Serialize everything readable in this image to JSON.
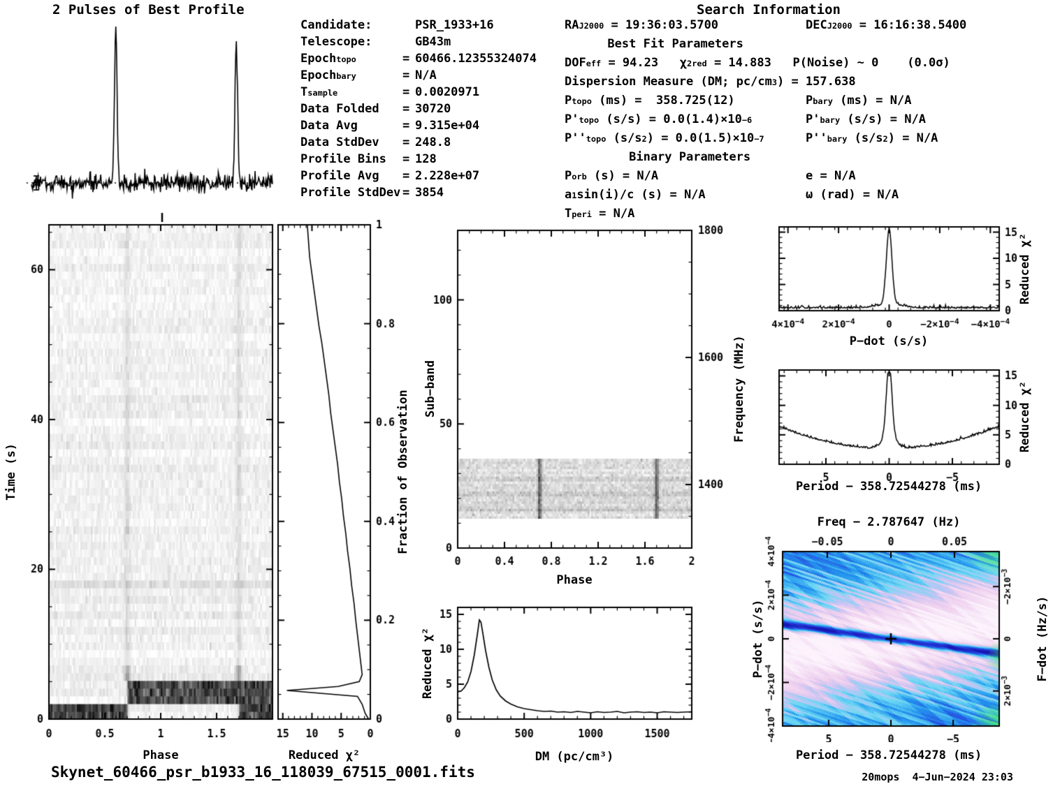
{
  "colors": {
    "background": "#ffffff",
    "ink": "#000000",
    "map_deep_blue": "#1816b4",
    "map_blue": "#2846e1",
    "map_cyan": "#2396ee",
    "map_light_cyan": "#6edaf4",
    "map_lavender": "#c4c4f4",
    "map_pink": "#eecee e",
    "map_white": "#fcf3fc",
    "map_green": "#46e878"
  },
  "header": {
    "profile_title": "2 Pulses of Best Profile",
    "search_title": "Search Information"
  },
  "candidate_info": {
    "rows": [
      {
        "lab": [
          {
            "t": "Candidate:"
          }
        ],
        "eq": "",
        "val": "PSR_1933+16"
      },
      {
        "lab": [
          {
            "t": "Telescope:"
          }
        ],
        "eq": "",
        "val": "GB43m"
      },
      {
        "lab": [
          {
            "t": "Epoch"
          },
          {
            "t": "topo",
            "s": "sub"
          }
        ],
        "eq": "=",
        "val": "60466.12355324074"
      },
      {
        "lab": [
          {
            "t": "Epoch"
          },
          {
            "t": "bary",
            "s": "sub"
          }
        ],
        "eq": "=",
        "val": "N/A"
      },
      {
        "lab": [
          {
            "t": "T"
          },
          {
            "t": "sample",
            "s": "sub"
          }
        ],
        "eq": "=",
        "val": "0.0020971"
      },
      {
        "lab": [
          {
            "t": "Data Folded"
          }
        ],
        "eq": "=",
        "val": "30720"
      },
      {
        "lab": [
          {
            "t": "Data Avg"
          }
        ],
        "eq": "=",
        "val": "9.315e+04"
      },
      {
        "lab": [
          {
            "t": "Data StdDev"
          }
        ],
        "eq": "=",
        "val": "248.8"
      },
      {
        "lab": [
          {
            "t": "Profile Bins"
          }
        ],
        "eq": "=",
        "val": "128"
      },
      {
        "lab": [
          {
            "t": "Profile Avg"
          }
        ],
        "eq": "=",
        "val": "2.228e+07"
      },
      {
        "lab": [
          {
            "t": "Profile StdDev"
          }
        ],
        "eq": "=",
        "val": "3854"
      }
    ]
  },
  "search_info": {
    "rows": [
      {
        "l": [
          {
            "t": "RA"
          },
          {
            "t": "J2000",
            "s": "sub"
          },
          {
            "t": " = 19:36:03.5700"
          }
        ],
        "r": [
          {
            "t": "DEC"
          },
          {
            "t": "J2000",
            "s": "sub"
          },
          {
            "t": " = 16:16:38.5400"
          }
        ]
      },
      {
        "l": [
          {
            "t": "      Best Fit Parameters"
          }
        ]
      },
      {
        "l": [
          {
            "t": "DOF"
          },
          {
            "t": "eff",
            "s": "sub"
          },
          {
            "t": " = 94.23   "
          },
          {
            "t": "χ"
          },
          {
            "t": "2",
            "s": "sup"
          },
          {
            "t": "red",
            "s": "sub"
          },
          {
            "t": " = 14.883   P(Noise) ~ 0    (0.0σ)"
          }
        ]
      },
      {
        "l": [
          {
            "t": "Dispersion Measure (DM; pc/cm"
          },
          {
            "t": "3",
            "s": "sup"
          },
          {
            "t": ") = 157.638"
          }
        ]
      },
      {
        "l": [
          {
            "t": "P"
          },
          {
            "t": "topo",
            "s": "sub"
          },
          {
            "t": " (ms) =  358.725(12)"
          }
        ],
        "r": [
          {
            "t": "P"
          },
          {
            "t": "bary",
            "s": "sub"
          },
          {
            "t": " (ms) = N/A"
          }
        ]
      },
      {
        "l": [
          {
            "t": "P'"
          },
          {
            "t": "topo",
            "s": "sub"
          },
          {
            "t": " (s/s) = 0.0(1.4)×10"
          },
          {
            "t": "−6",
            "s": "sup"
          }
        ],
        "r": [
          {
            "t": "P'"
          },
          {
            "t": "bary",
            "s": "sub"
          },
          {
            "t": " (s/s) = N/A"
          }
        ]
      },
      {
        "l": [
          {
            "t": "P''"
          },
          {
            "t": "topo",
            "s": "sub"
          },
          {
            "t": " (s/s"
          },
          {
            "t": "2",
            "s": "sup"
          },
          {
            "t": ") = 0.0(1.5)×10"
          },
          {
            "t": "−7",
            "s": "sup"
          }
        ],
        "r": [
          {
            "t": "P''"
          },
          {
            "t": "bary",
            "s": "sub"
          },
          {
            "t": " (s/s"
          },
          {
            "t": "2",
            "s": "sup"
          },
          {
            "t": ") = N/A"
          }
        ]
      },
      {
        "l": [
          {
            "t": "         Binary Parameters"
          }
        ]
      },
      {
        "l": [
          {
            "t": "P"
          },
          {
            "t": "orb",
            "s": "sub"
          },
          {
            "t": " (s) = N/A"
          }
        ],
        "r": [
          {
            "t": "e = N/A"
          }
        ]
      },
      {
        "l": [
          {
            "t": "a"
          },
          {
            "t": "1",
            "s": "sub"
          },
          {
            "t": "sin(i)/c (s) = N/A"
          }
        ],
        "r": [
          {
            "t": "ω (rad) = N/A"
          }
        ]
      },
      {
        "l": [
          {
            "t": "T"
          },
          {
            "t": "peri",
            "s": "sub"
          },
          {
            "t": " = N/A"
          }
        ]
      }
    ]
  },
  "axis_labels": {
    "time": "Time (s)",
    "phase": "Phase",
    "reduced_chisq": "Reduced χ²",
    "fraction": "Fraction of Observation",
    "subband": "Sub−band",
    "frequency": "Frequency (MHz)",
    "dm": "DM (pc/cm³)",
    "pdot": "P−dot (s/s)",
    "period": "Period − 358.72544278 (ms)",
    "freq_top": "Freq − 2.787647 (Hz)",
    "fdot": "F−dot (Hz/s)"
  },
  "footer": {
    "filename": "Skynet_60466_psr_b1933_16_118039_67515_0001.fits",
    "credit": "20mops  4−Jun−2024 23:03"
  },
  "chart_data": [
    {
      "id": "profile",
      "type": "line",
      "title": "2 Pulses of Best Profile",
      "x_range": [
        0,
        2
      ],
      "n_bins": 400,
      "noise_sigma": 1,
      "peaks": [
        {
          "center": 0.7,
          "sigma": 0.011,
          "height": 35
        },
        {
          "center": 1.7,
          "sigma": 0.011,
          "height": 33
        }
      ],
      "mean_line": true,
      "profile_avg": "2.228e+07",
      "profile_stddev": "3854"
    },
    {
      "id": "time_phase",
      "type": "heatmap",
      "xlabel": "Phase",
      "ylabel": "Time (s)",
      "x_range": [
        0,
        2
      ],
      "x_ticks": [
        0,
        0.5,
        1,
        1.5
      ],
      "y_range": [
        0,
        66
      ],
      "y_ticks": [
        0,
        20,
        40,
        60
      ],
      "rows": 64,
      "cols": 128,
      "pulse_phases": [
        0.7,
        1.7
      ],
      "bright_interval_s": [
        0,
        5
      ]
    },
    {
      "id": "chisq_fraction",
      "type": "line",
      "xlabel": "Reduced χ²",
      "x_range": [
        15.8,
        0
      ],
      "x_ticks": [
        15,
        10,
        5,
        0
      ],
      "ylabel_right": "Fraction of Observation",
      "y_range": [
        0,
        1
      ],
      "y_ticks": [
        0,
        0.2,
        0.4,
        0.6,
        0.8,
        1
      ],
      "points": [
        [
          0.3,
          0
        ],
        [
          0.9,
          0.012
        ],
        [
          1.4,
          0.03
        ],
        [
          2.2,
          0.046
        ],
        [
          14.3,
          0.058
        ],
        [
          5.5,
          0.066
        ],
        [
          1.9,
          0.076
        ],
        [
          1.4,
          0.09
        ],
        [
          1.6,
          0.11
        ],
        [
          1.9,
          0.14
        ],
        [
          2.2,
          0.17
        ],
        [
          2.5,
          0.2
        ],
        [
          2.8,
          0.235
        ],
        [
          3.2,
          0.27
        ],
        [
          3.5,
          0.305
        ],
        [
          3.9,
          0.34
        ],
        [
          4.2,
          0.375
        ],
        [
          4.6,
          0.41
        ],
        [
          4.9,
          0.445
        ],
        [
          5.3,
          0.48
        ],
        [
          5.6,
          0.515
        ],
        [
          6.0,
          0.55
        ],
        [
          6.4,
          0.585
        ],
        [
          6.8,
          0.62
        ],
        [
          7.1,
          0.655
        ],
        [
          7.5,
          0.69
        ],
        [
          7.9,
          0.725
        ],
        [
          8.3,
          0.76
        ],
        [
          8.8,
          0.795
        ],
        [
          9.2,
          0.83
        ],
        [
          9.6,
          0.865
        ],
        [
          10.0,
          0.9
        ],
        [
          10.4,
          0.935
        ],
        [
          10.6,
          0.968
        ],
        [
          10.8,
          1.0
        ]
      ]
    },
    {
      "id": "subband_phase",
      "type": "heatmap",
      "xlabel": "Phase",
      "ylabel": "Sub−band",
      "ylabel_right": "Frequency (MHz)",
      "x_range": [
        0,
        2
      ],
      "x_ticks": [
        0,
        0.4,
        0.8,
        1.2,
        1.6,
        2
      ],
      "y_range": [
        0,
        128
      ],
      "y_ticks": [
        0,
        50,
        100
      ],
      "right_range": [
        1300,
        1800
      ],
      "right_ticks": [
        1400,
        1600,
        1800
      ],
      "signal_band": [
        12,
        36
      ],
      "pulse_phases": [
        0.7,
        1.7
      ]
    },
    {
      "id": "dm_curve",
      "type": "line",
      "xlabel": "DM (pc/cm³)",
      "ylabel": "Reduced χ²",
      "x_range": [
        0,
        1760
      ],
      "x_ticks": [
        0,
        500,
        1000,
        1500
      ],
      "y_range": [
        0,
        16
      ],
      "y_ticks": [
        0,
        5,
        10,
        15
      ],
      "best_dm": 157.638,
      "points": [
        [
          0,
          3.9
        ],
        [
          25,
          4.0
        ],
        [
          50,
          4.5
        ],
        [
          75,
          5.3
        ],
        [
          100,
          6.8
        ],
        [
          125,
          9.2
        ],
        [
          150,
          12.4
        ],
        [
          163,
          14.2
        ],
        [
          175,
          13.9
        ],
        [
          190,
          12.2
        ],
        [
          210,
          9.8
        ],
        [
          235,
          7.4
        ],
        [
          260,
          5.6
        ],
        [
          290,
          4.2
        ],
        [
          320,
          3.3
        ],
        [
          360,
          2.6
        ],
        [
          400,
          2.15
        ],
        [
          450,
          1.75
        ],
        [
          500,
          1.5
        ],
        [
          550,
          1.35
        ],
        [
          600,
          1.2
        ],
        [
          650,
          1.1
        ],
        [
          700,
          1.15
        ],
        [
          750,
          1.0
        ],
        [
          800,
          1.05
        ],
        [
          850,
          0.95
        ],
        [
          900,
          1.1
        ],
        [
          950,
          1.0
        ],
        [
          1000,
          0.9
        ],
        [
          1050,
          1.05
        ],
        [
          1100,
          0.95
        ],
        [
          1150,
          1.0
        ],
        [
          1200,
          1.1
        ],
        [
          1250,
          0.9
        ],
        [
          1300,
          1.0
        ],
        [
          1350,
          1.05
        ],
        [
          1400,
          0.95
        ],
        [
          1450,
          1.0
        ],
        [
          1500,
          0.9
        ],
        [
          1550,
          1.05
        ],
        [
          1600,
          1.0
        ],
        [
          1650,
          0.95
        ],
        [
          1700,
          1.0
        ],
        [
          1760,
          1.05
        ]
      ]
    },
    {
      "id": "pdot_curve",
      "type": "line",
      "xlabel": "P−dot (s/s)",
      "ylabel_right": "Reduced χ²",
      "x_range_1e4": [
        4.35,
        -4.35
      ],
      "x_ticks_1e4": [
        4,
        2,
        0,
        -2,
        -4
      ],
      "x_tick_labels": [
        "4×10^−4",
        "2×10^−4",
        "0",
        "−2×10^−4",
        "−4×10^−4"
      ],
      "y_range": [
        0,
        16
      ],
      "y_ticks": [
        0,
        5,
        10,
        15
      ],
      "peak": {
        "center": 0,
        "sigma_1e4": 0.11,
        "height": 14.3
      },
      "pedestal": {
        "sigma_1e4": 0.5,
        "height": 0.7
      },
      "baseline": 0.45,
      "noise": 0.2,
      "n": 320
    },
    {
      "id": "period_curve",
      "type": "line",
      "xlabel": "Period − 358.72544278 (ms)",
      "ylabel_right": "Reduced χ²",
      "x_range_ms": [
        8.7,
        -8.7
      ],
      "x_ticks_ms": [
        5,
        0,
        -5
      ],
      "x_tick_labels": [
        "5",
        "0",
        "−5"
      ],
      "y_range": [
        0,
        16
      ],
      "y_ticks": [
        0,
        5,
        10,
        15
      ],
      "peak": {
        "center": 0,
        "sigma_ms": 0.22,
        "height": 12.2
      },
      "shoulder": {
        "sigma_ms": 0.55,
        "height": 2.0
      },
      "bowl": {
        "min": 2.55,
        "coef": 0.05
      },
      "noise": 0.18,
      "n": 320
    },
    {
      "id": "ppdot_map",
      "type": "heatmap",
      "xlabel": "Period − 358.72544278 (ms)",
      "xlabel_top": "Freq − 2.787647 (Hz)",
      "ylabel": "P−dot (s/s)",
      "ylabel_right": "F−dot (Hz/s)",
      "bottom_ticks": {
        "labels": [
          "5",
          "0",
          "−5"
        ],
        "fractions": [
          0.2126,
          0.5,
          0.7874
        ]
      },
      "top_ticks": {
        "labels": [
          "−0.05",
          "0",
          "0.05"
        ],
        "fractions": [
          0.2065,
          0.5,
          0.7935
        ]
      },
      "left_ticks": {
        "labels": [
          "4×10^−4",
          "2×10^−4",
          "0",
          "−2×10^−4",
          "−4×10^−4"
        ],
        "fractions": [
          0,
          0.25,
          0.5,
          0.75,
          1
        ]
      },
      "right_ticks": {
        "labels": [
          "−2×10^−3",
          "0",
          "2×10^−3"
        ],
        "fractions": [
          0.201,
          0.5,
          0.799
        ]
      },
      "marker": "+",
      "best_period_offset_ms": 0,
      "best_pdot": 0
    }
  ]
}
